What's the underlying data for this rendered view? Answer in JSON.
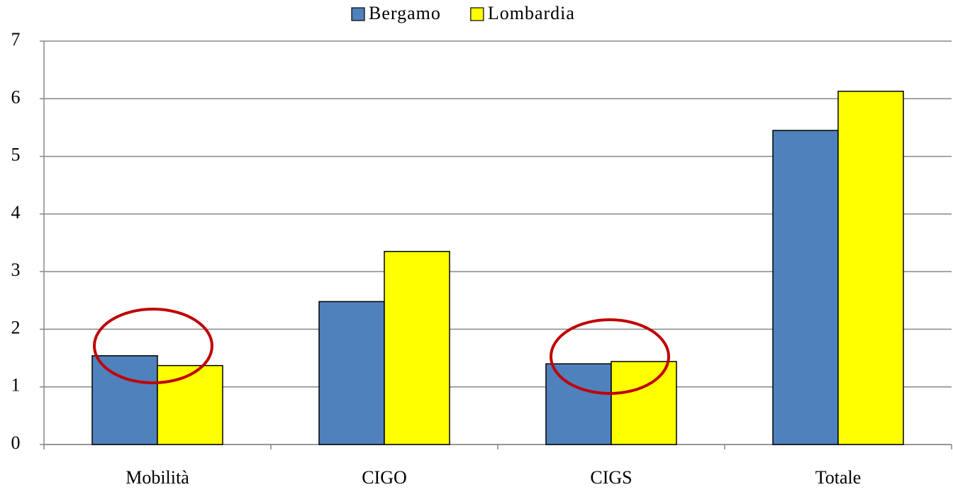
{
  "chart_data": {
    "type": "bar",
    "categories": [
      "Mobilità",
      "CIGO",
      "CIGS",
      "Totale"
    ],
    "series": [
      {
        "name": "Bergamo",
        "color": "#4f81bd",
        "values": [
          1.54,
          2.48,
          1.4,
          5.45
        ]
      },
      {
        "name": "Lombardia",
        "color": "#ffff00",
        "values": [
          1.37,
          3.35,
          1.44,
          6.13
        ]
      }
    ],
    "ylim": [
      0,
      7
    ],
    "yticks": [
      0,
      1,
      2,
      3,
      4,
      5,
      6,
      7
    ],
    "grid": true,
    "legend": "top"
  }
}
